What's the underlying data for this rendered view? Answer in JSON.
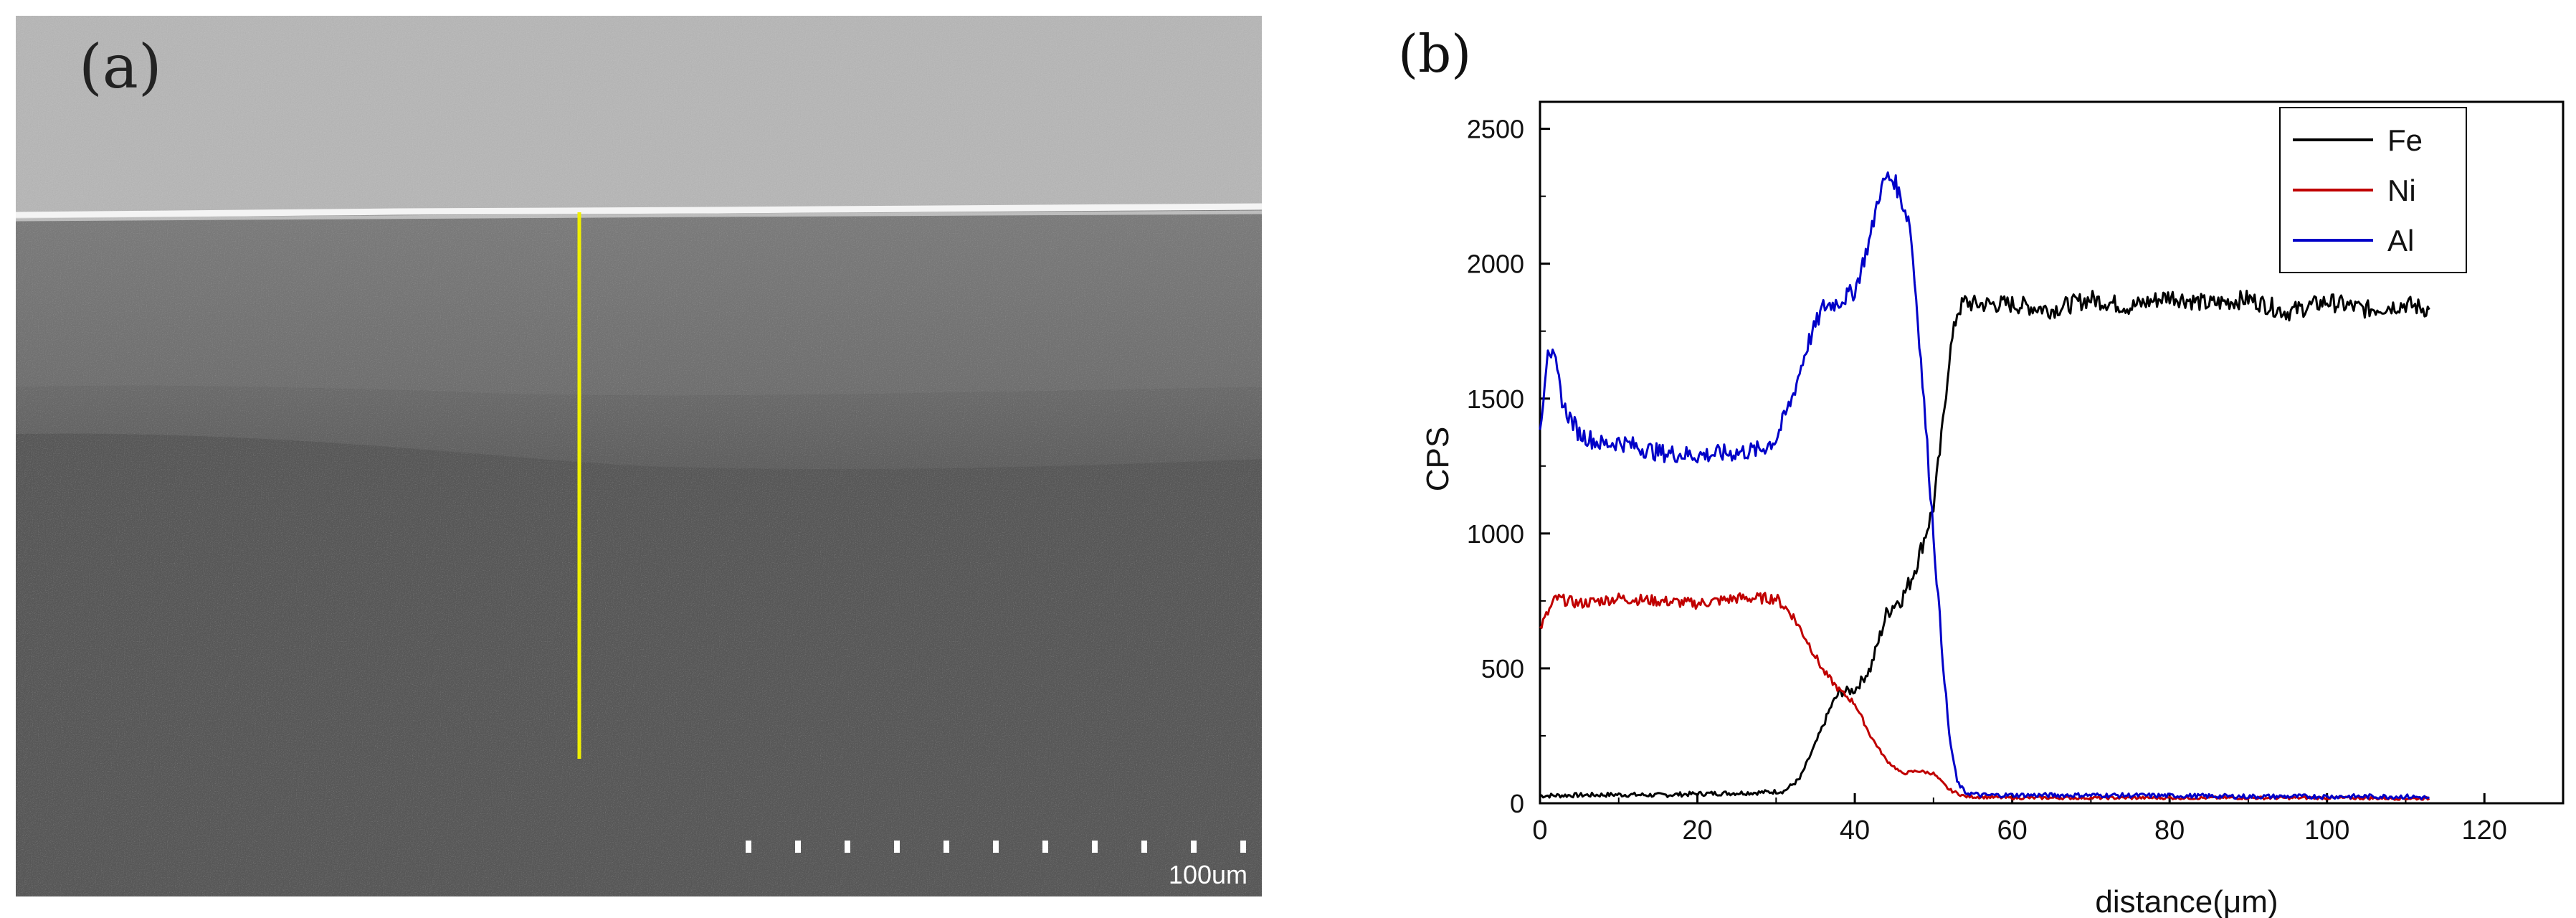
{
  "panel_a": {
    "label": "(a)",
    "scale_bar_text": "100um",
    "line_color": "#f0f000"
  },
  "chart_data": {
    "type": "line",
    "panel_label": "(b)",
    "title": "",
    "xlabel": "distance(μm)",
    "ylabel": "CPS",
    "xlim": [
      0,
      130
    ],
    "ylim": [
      0,
      2600
    ],
    "xticks": [
      0,
      20,
      40,
      60,
      80,
      100,
      120
    ],
    "yticks": [
      0,
      500,
      1000,
      1500,
      2000,
      2500
    ],
    "grid": false,
    "legend_position": "top-right",
    "series": [
      {
        "name": "Fe",
        "color": "#000000",
        "x": [
          0,
          5,
          10,
          15,
          20,
          25,
          28,
          31,
          33,
          35,
          37,
          38,
          40,
          42,
          43,
          44,
          45,
          46,
          47,
          48,
          49,
          50,
          51,
          52,
          53,
          54,
          55,
          60,
          65,
          70,
          75,
          80,
          85,
          90,
          95,
          100,
          105,
          110,
          113
        ],
        "y": [
          28,
          30,
          32,
          30,
          35,
          38,
          40,
          45,
          90,
          220,
          360,
          410,
          420,
          500,
          600,
          700,
          740,
          760,
          820,
          900,
          1000,
          1100,
          1350,
          1650,
          1820,
          1860,
          1850,
          1850,
          1830,
          1870,
          1840,
          1880,
          1850,
          1870,
          1820,
          1860,
          1830,
          1850,
          1830
        ]
      },
      {
        "name": "Ni",
        "color": "#c00000",
        "x": [
          0,
          2,
          5,
          10,
          15,
          20,
          25,
          30,
          32,
          34,
          36,
          38,
          40,
          42,
          44,
          46,
          48,
          50,
          52,
          54,
          60,
          70,
          80,
          90,
          100,
          110,
          113
        ],
        "y": [
          650,
          760,
          740,
          760,
          750,
          740,
          760,
          760,
          700,
          600,
          490,
          420,
          370,
          250,
          160,
          110,
          120,
          110,
          50,
          25,
          20,
          20,
          20,
          20,
          20,
          18,
          18
        ]
      },
      {
        "name": "Al",
        "color": "#0000c8",
        "x": [
          0,
          1,
          2,
          3,
          5,
          8,
          10,
          15,
          20,
          25,
          28,
          30,
          32,
          34,
          36,
          38,
          40,
          42,
          43,
          44,
          45,
          46,
          47,
          48,
          49,
          50,
          51,
          52,
          53,
          54,
          56,
          60,
          70,
          80,
          90,
          100,
          110,
          113
        ],
        "y": [
          1380,
          1700,
          1620,
          1470,
          1370,
          1330,
          1340,
          1300,
          1290,
          1300,
          1310,
          1350,
          1500,
          1700,
          1840,
          1860,
          1900,
          2100,
          2250,
          2320,
          2310,
          2230,
          2150,
          1800,
          1400,
          1000,
          600,
          250,
          80,
          40,
          30,
          30,
          30,
          28,
          25,
          25,
          25,
          20
        ]
      }
    ]
  }
}
